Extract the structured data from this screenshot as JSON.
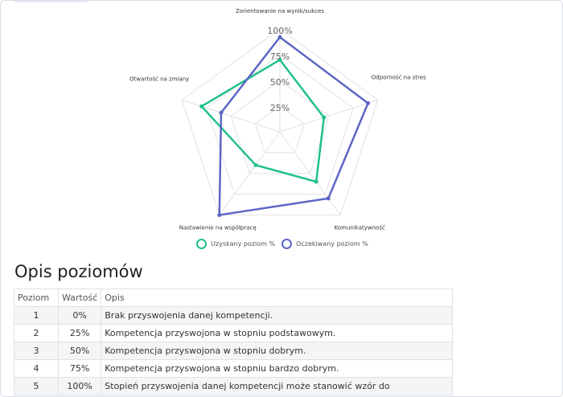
{
  "chart_data": {
    "type": "radar",
    "axes": [
      "Zorientowanie na wynik/sukces",
      "Odporność na stres",
      "Komunikatywność",
      "Nastawienie na współpracę",
      "Otwartość na zmiany"
    ],
    "ticks": [
      "25%",
      "50%",
      "75%",
      "100%"
    ],
    "rmax": 100,
    "series": [
      {
        "name": "Uzyskany poziom %",
        "values": [
          70,
          45,
          60,
          40,
          80
        ],
        "color": "#20c08b"
      },
      {
        "name": "Oczekiwany poziom %",
        "values": [
          92,
          90,
          80,
          100,
          60
        ],
        "color": "#5c66c6"
      }
    ],
    "legend_position": "bottom",
    "grid": true
  },
  "section": {
    "title": "Opis poziomów"
  },
  "table": {
    "headers": [
      "Poziom",
      "Wartość",
      "Opis"
    ],
    "rows": [
      [
        "1",
        "0%",
        "Brak przyswojenia danej kompetencji."
      ],
      [
        "2",
        "25%",
        "Kompetencja przyswojona w stopniu podstawowym."
      ],
      [
        "3",
        "50%",
        "Kompetencja przyswojona w stopniu dobrym."
      ],
      [
        "4",
        "75%",
        "Kompetencja przyswojona w stopniu bardzo dobrym."
      ],
      [
        "5",
        "100%",
        "Stopień przyswojenia danej kompetencji może stanowić wzór do"
      ]
    ]
  }
}
